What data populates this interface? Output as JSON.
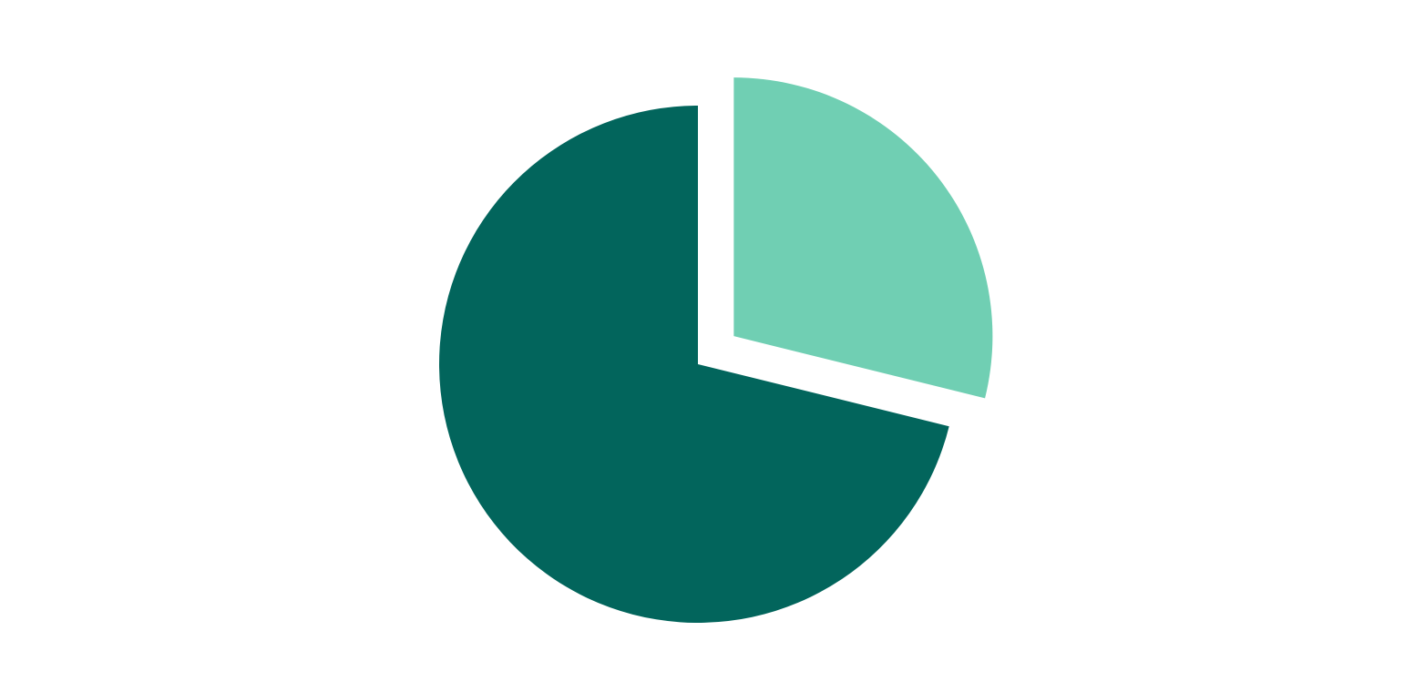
{
  "chart_data": {
    "type": "pie",
    "start_angle": "12 o'clock",
    "direction": "clockwise",
    "slices": [
      {
        "value": 0.2886,
        "color": "#70CFB3",
        "exploded": true
      },
      {
        "value": 0.7114,
        "color": "#02655C",
        "exploded": false
      }
    ],
    "legend": "none",
    "labels": "none"
  }
}
